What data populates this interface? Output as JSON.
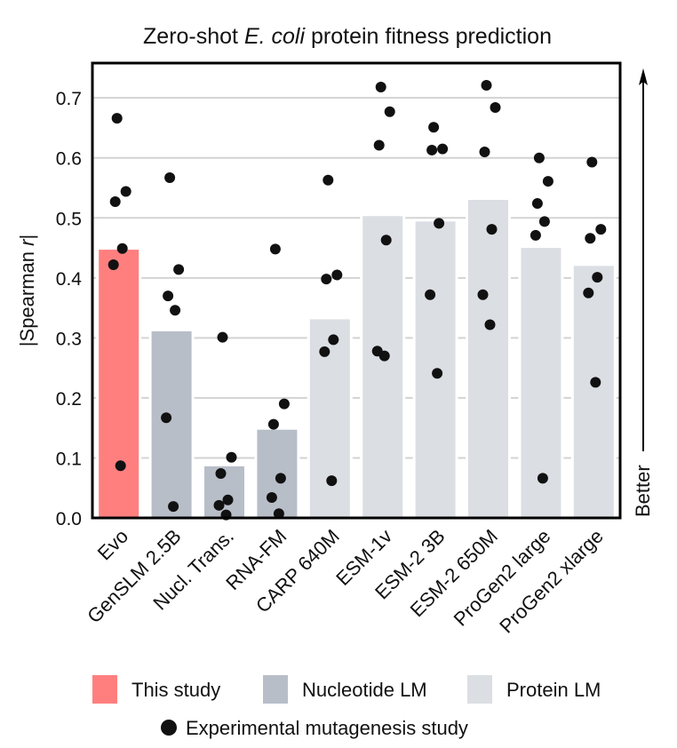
{
  "chart_data": {
    "type": "bar",
    "title_parts": [
      {
        "text": "Zero-shot ",
        "italic": false
      },
      {
        "text": "E. coli",
        "italic": true
      },
      {
        "text": " protein fitness prediction",
        "italic": false
      }
    ],
    "title": "Zero-shot E. coli protein fitness prediction",
    "ylabel_parts": [
      {
        "text": "|Spearman ",
        "italic": false
      },
      {
        "text": "r",
        "italic": true
      },
      {
        "text": "|",
        "italic": false
      }
    ],
    "ylabel": "|Spearman r|",
    "xlabel": "",
    "ylim": [
      0.0,
      0.758
    ],
    "yticks": [
      0.0,
      0.1,
      0.2,
      0.3,
      0.4,
      0.5,
      0.6,
      0.7
    ],
    "ytick_labels": [
      "0.0",
      "0.1",
      "0.2",
      "0.3",
      "0.4",
      "0.5",
      "0.6",
      "0.7"
    ],
    "grid": "horizontal",
    "categories": [
      "Evo",
      "GenSLM 2.5B",
      "Nucl. Trans.",
      "RNA-FM",
      "CARP 640M",
      "ESM-1v",
      "ESM-2 3B",
      "ESM-2 650M",
      "ProGen2 large",
      "ProGen2 xlarge"
    ],
    "groups": [
      "This study",
      "Nucleotide LM",
      "Nucleotide LM",
      "Nucleotide LM",
      "Protein LM",
      "Protein LM",
      "Protein LM",
      "Protein LM",
      "Protein LM",
      "Protein LM"
    ],
    "values": [
      0.447,
      0.311,
      0.086,
      0.147,
      0.331,
      0.503,
      0.494,
      0.53,
      0.45,
      0.42
    ],
    "points": [
      [
        0.666,
        0.544,
        0.527,
        0.449,
        0.422,
        0.087
      ],
      [
        0.567,
        0.414,
        0.37,
        0.346,
        0.167,
        0.019
      ],
      [
        0.301,
        0.101,
        0.074,
        0.03,
        0.021,
        0.005
      ],
      [
        0.448,
        0.19,
        0.156,
        0.066,
        0.034,
        0.007
      ],
      [
        0.563,
        0.405,
        0.398,
        0.297,
        0.277,
        0.062
      ],
      [
        0.718,
        0.677,
        0.621,
        0.463,
        0.278,
        0.27
      ],
      [
        0.651,
        0.615,
        0.613,
        0.491,
        0.372,
        0.241
      ],
      [
        0.721,
        0.684,
        0.61,
        0.481,
        0.372,
        0.322
      ],
      [
        0.6,
        0.561,
        0.524,
        0.494,
        0.471,
        0.066
      ],
      [
        0.593,
        0.481,
        0.466,
        0.401,
        0.375,
        0.226
      ]
    ],
    "group_colors": {
      "This study": "#ff7f7f",
      "Nucleotide LM": "#b8bec8",
      "Protein LM": "#dbdee3"
    },
    "point_color": "#111111",
    "grid_color": "#d3d3d3",
    "legend": {
      "placement": "bottom",
      "entries": [
        {
          "label": "This study",
          "color": "#ff7f7f",
          "marker": "square"
        },
        {
          "label": "Nucleotide LM",
          "color": "#b8bec8",
          "marker": "square"
        },
        {
          "label": "Protein LM",
          "color": "#dbdee3",
          "marker": "square"
        }
      ],
      "point_entry": {
        "label": "Experimental mutagenesis study",
        "marker": "circle",
        "color": "#111111"
      }
    },
    "annotation": {
      "text": "Better",
      "direction": "up-arrow",
      "placement": "right"
    }
  }
}
